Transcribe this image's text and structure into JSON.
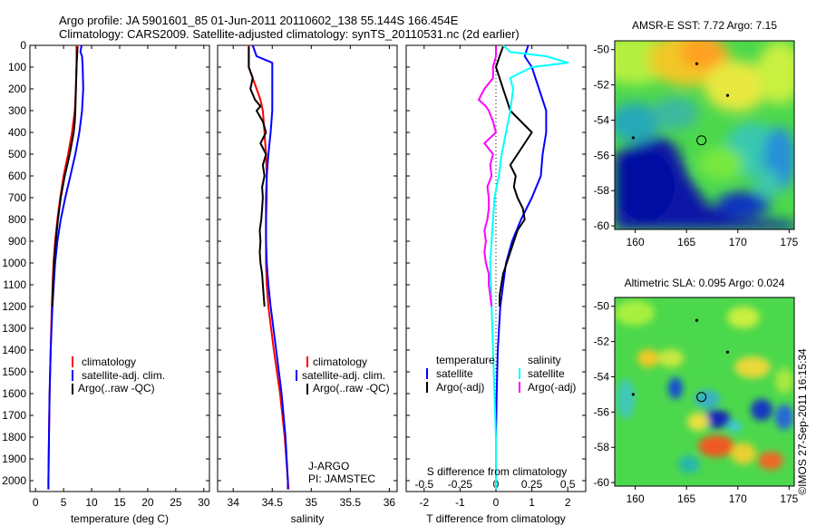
{
  "title_line1": "Argo profile: JA 5901601_85 01-Jun-2011 20110602_138 55.144S 166.454E",
  "title_line2": "Climatology: CARS2009. Satellite-adjusted climatology: synTS_20110531.nc (2d earlier)",
  "credit": "©IMOS 27-Sep-2011 16:15:34",
  "colors": {
    "climatology": "#ff0000",
    "satellite": "#0000ff",
    "argo": "#000000",
    "salinity_satellite": "#00ffff",
    "salinity_argo": "#ff00ff"
  },
  "depth_ticks": [
    "0",
    "100",
    "200",
    "300",
    "400",
    "500",
    "600",
    "700",
    "800",
    "900",
    "1000",
    "1100",
    "1200",
    "1300",
    "1400",
    "1500",
    "1600",
    "1700",
    "1800",
    "1900",
    "2000"
  ],
  "chart_data": [
    {
      "type": "line",
      "xlabel": "temperature (deg C)",
      "xlim": [
        -1,
        31
      ],
      "ylim": [
        2050,
        0
      ],
      "xticks": [
        "0",
        "5",
        "10",
        "15",
        "20",
        "25",
        "30"
      ],
      "legend": [
        "climatology",
        "satellite-adj. clim.",
        "Argo(..raw -QC)"
      ],
      "series": [
        {
          "name": "climatology",
          "color": "#ff0000",
          "depth": [
            0,
            50,
            100,
            200,
            300,
            400,
            500,
            600,
            700,
            800,
            900,
            1000,
            1200,
            1400,
            1600,
            1800,
            2000,
            2040
          ],
          "values": [
            7.3,
            7.3,
            7.3,
            7.2,
            7.0,
            6.5,
            5.8,
            5.0,
            4.4,
            3.9,
            3.5,
            3.2,
            2.9,
            2.7,
            2.5,
            2.4,
            2.3,
            2.3
          ]
        },
        {
          "name": "satellite-adj. clim.",
          "color": "#0000ff",
          "depth": [
            0,
            30,
            50,
            100,
            200,
            300,
            400,
            500,
            600,
            700,
            800,
            900,
            1000,
            1200,
            1400,
            1600,
            1800,
            2000,
            2040
          ],
          "values": [
            8.2,
            8.0,
            8.3,
            8.4,
            8.5,
            8.3,
            7.8,
            7.1,
            6.2,
            5.3,
            4.5,
            3.9,
            3.5,
            3.0,
            2.7,
            2.5,
            2.4,
            2.3,
            2.3
          ]
        },
        {
          "name": "Argo(..raw -QC)",
          "color": "#000000",
          "depth": [
            5,
            50,
            100,
            200,
            300,
            350,
            400,
            500,
            600,
            700,
            800,
            900,
            1000,
            1100,
            1200
          ],
          "values": [
            7.5,
            7.4,
            7.3,
            7.2,
            7.1,
            7.0,
            6.8,
            6.1,
            5.2,
            4.5,
            4.0,
            3.6,
            3.3,
            3.1,
            3.0
          ]
        }
      ]
    },
    {
      "type": "line",
      "xlabel": "salinity",
      "xlim": [
        33.8,
        36.1
      ],
      "ylim": [
        2050,
        0
      ],
      "xticks": [
        "34",
        "34.5",
        "35",
        "35.5",
        "36"
      ],
      "legend": [
        "climatology",
        "satellite-adj. clim.",
        "Argo(..raw -QC)"
      ],
      "annotation": [
        "J-ARGO",
        "PI: JAMSTEC"
      ],
      "series": [
        {
          "name": "climatology",
          "color": "#ff0000",
          "depth": [
            0,
            50,
            100,
            150,
            200,
            250,
            300,
            400,
            500,
            600,
            700,
            800,
            900,
            1000,
            1100,
            1200,
            1400,
            1600,
            1800,
            2000,
            2040
          ],
          "values": [
            34.2,
            34.2,
            34.2,
            34.25,
            34.3,
            34.35,
            34.38,
            34.4,
            34.42,
            34.43,
            34.43,
            34.42,
            34.42,
            34.42,
            34.43,
            34.45,
            34.52,
            34.6,
            34.66,
            34.7,
            34.71
          ]
        },
        {
          "name": "satellite-adj. clim.",
          "color": "#0000ff",
          "depth": [
            0,
            50,
            80,
            100,
            200,
            300,
            400,
            500,
            600,
            700,
            800,
            900,
            1000,
            1100,
            1200,
            1400,
            1600,
            1800,
            2000,
            2040
          ],
          "values": [
            34.25,
            34.3,
            34.5,
            34.5,
            34.5,
            34.5,
            34.48,
            34.45,
            34.43,
            34.42,
            34.42,
            34.42,
            34.43,
            34.45,
            34.48,
            34.55,
            34.62,
            34.67,
            34.7,
            34.7
          ]
        },
        {
          "name": "Argo(..raw -QC)",
          "color": "#000000",
          "depth": [
            5,
            50,
            100,
            150,
            200,
            250,
            280,
            300,
            350,
            400,
            450,
            500,
            550,
            600,
            650,
            700,
            750,
            800,
            850,
            900,
            950,
            1000,
            1050,
            1100,
            1150,
            1200
          ],
          "values": [
            34.2,
            34.2,
            34.2,
            34.25,
            34.22,
            34.28,
            34.35,
            34.3,
            34.38,
            34.42,
            34.35,
            34.42,
            34.38,
            34.4,
            34.37,
            34.38,
            34.37,
            34.36,
            34.34,
            34.35,
            34.34,
            34.35,
            34.37,
            34.38,
            34.39,
            34.4
          ]
        }
      ]
    },
    {
      "type": "line",
      "xlabel": "T difference from climatology",
      "xlabel_top": "S difference from climatology",
      "xlim": [
        -2.5,
        2.5
      ],
      "ylim": [
        2050,
        0
      ],
      "xticks": [
        "-2",
        "-1",
        "0",
        "1",
        "2"
      ],
      "xticks_top": [
        "-0.5",
        "-0.25",
        "0",
        "0.25",
        "0.5"
      ],
      "legend_temperature_title": "temperature",
      "legend_salinity_title": "salinity",
      "legend_temperature": [
        "satellite",
        "Argo(-adj)"
      ],
      "legend_salinity": [
        "satellite",
        "Argo(-adj)"
      ],
      "series": [
        {
          "name": "temperature satellite",
          "color": "#0000ff",
          "depth": [
            0,
            50,
            100,
            200,
            300,
            400,
            500,
            600,
            700,
            800,
            900,
            1000,
            1200,
            1400,
            1600,
            1800,
            2000,
            2040
          ],
          "values": [
            0.9,
            0.8,
            1.0,
            1.2,
            1.4,
            1.4,
            1.3,
            1.25,
            1.0,
            0.7,
            0.45,
            0.28,
            0.12,
            0.05,
            0.02,
            0.0,
            0.0,
            0.0
          ]
        },
        {
          "name": "temperature Argo(-adj)",
          "color": "#000000",
          "depth": [
            5,
            50,
            100,
            150,
            200,
            250,
            300,
            350,
            400,
            450,
            500,
            550,
            600,
            650,
            700,
            750,
            800,
            850,
            900,
            950,
            1000,
            1050,
            1100,
            1150,
            1200
          ],
          "values": [
            0.2,
            0.1,
            0.0,
            0.1,
            0.2,
            0.3,
            0.4,
            0.7,
            1.0,
            0.8,
            0.6,
            0.4,
            0.55,
            0.5,
            0.6,
            0.75,
            0.8,
            0.6,
            0.5,
            0.4,
            0.3,
            0.2,
            0.15,
            0.1,
            0.1
          ]
        },
        {
          "name": "salinity satellite",
          "color": "#00ffff",
          "depth": [
            0,
            30,
            50,
            80,
            100,
            150,
            200,
            300,
            400,
            500,
            600,
            700,
            800,
            900,
            1000,
            1200,
            1400,
            1600,
            1800,
            2000,
            2040
          ],
          "values": [
            0.05,
            0.1,
            0.35,
            0.5,
            0.25,
            0.1,
            0.12,
            0.1,
            0.07,
            0.04,
            0.02,
            -0.01,
            -0.02,
            -0.03,
            -0.04,
            -0.03,
            -0.02,
            -0.01,
            0.0,
            0.0,
            0.0
          ]
        },
        {
          "name": "salinity Argo(-adj)",
          "color": "#ff00ff",
          "depth": [
            5,
            50,
            100,
            150,
            200,
            250,
            280,
            300,
            350,
            400,
            450,
            500,
            550,
            600,
            650,
            700,
            750,
            800,
            850,
            900,
            950,
            1000,
            1050,
            1100,
            1150,
            1200
          ],
          "values": [
            0.0,
            0.0,
            -0.02,
            -0.02,
            -0.08,
            -0.12,
            -0.07,
            -0.05,
            -0.02,
            0.0,
            -0.08,
            -0.02,
            -0.04,
            -0.03,
            -0.06,
            -0.05,
            -0.05,
            -0.06,
            -0.08,
            -0.07,
            -0.08,
            -0.07,
            -0.05,
            -0.05,
            -0.04,
            -0.03
          ]
        }
      ]
    },
    {
      "type": "heatmap",
      "title": "AMSR-E SST: 7.72 Argo: 7.15",
      "xlim": [
        158,
        175.5
      ],
      "ylim": [
        -60.2,
        -49.5
      ],
      "xticks": [
        "160",
        "165",
        "170",
        "175"
      ],
      "yticks": [
        "-50",
        "-52",
        "-54",
        "-56",
        "-58",
        "-60"
      ],
      "profile_marker": {
        "lon": 166.454,
        "lat": -55.144
      },
      "other_profiles": [
        {
          "lon": 166.0,
          "lat": -50.8
        },
        {
          "lon": 169.0,
          "lat": -52.6
        },
        {
          "lon": 159.8,
          "lat": -55.0
        }
      ]
    },
    {
      "type": "heatmap",
      "title": "Altimetric SLA: 0.095 Argo: 0.024",
      "xlim": [
        158,
        175.5
      ],
      "ylim": [
        -60.2,
        -49.5
      ],
      "xticks": [
        "160",
        "165",
        "170",
        "175"
      ],
      "yticks": [
        "-50",
        "-52",
        "-54",
        "-56",
        "-58",
        "-60"
      ],
      "profile_marker": {
        "lon": 166.454,
        "lat": -55.144
      },
      "other_profiles": [
        {
          "lon": 166.0,
          "lat": -50.8
        },
        {
          "lon": 169.0,
          "lat": -52.6
        },
        {
          "lon": 159.8,
          "lat": -55.0
        }
      ]
    }
  ]
}
